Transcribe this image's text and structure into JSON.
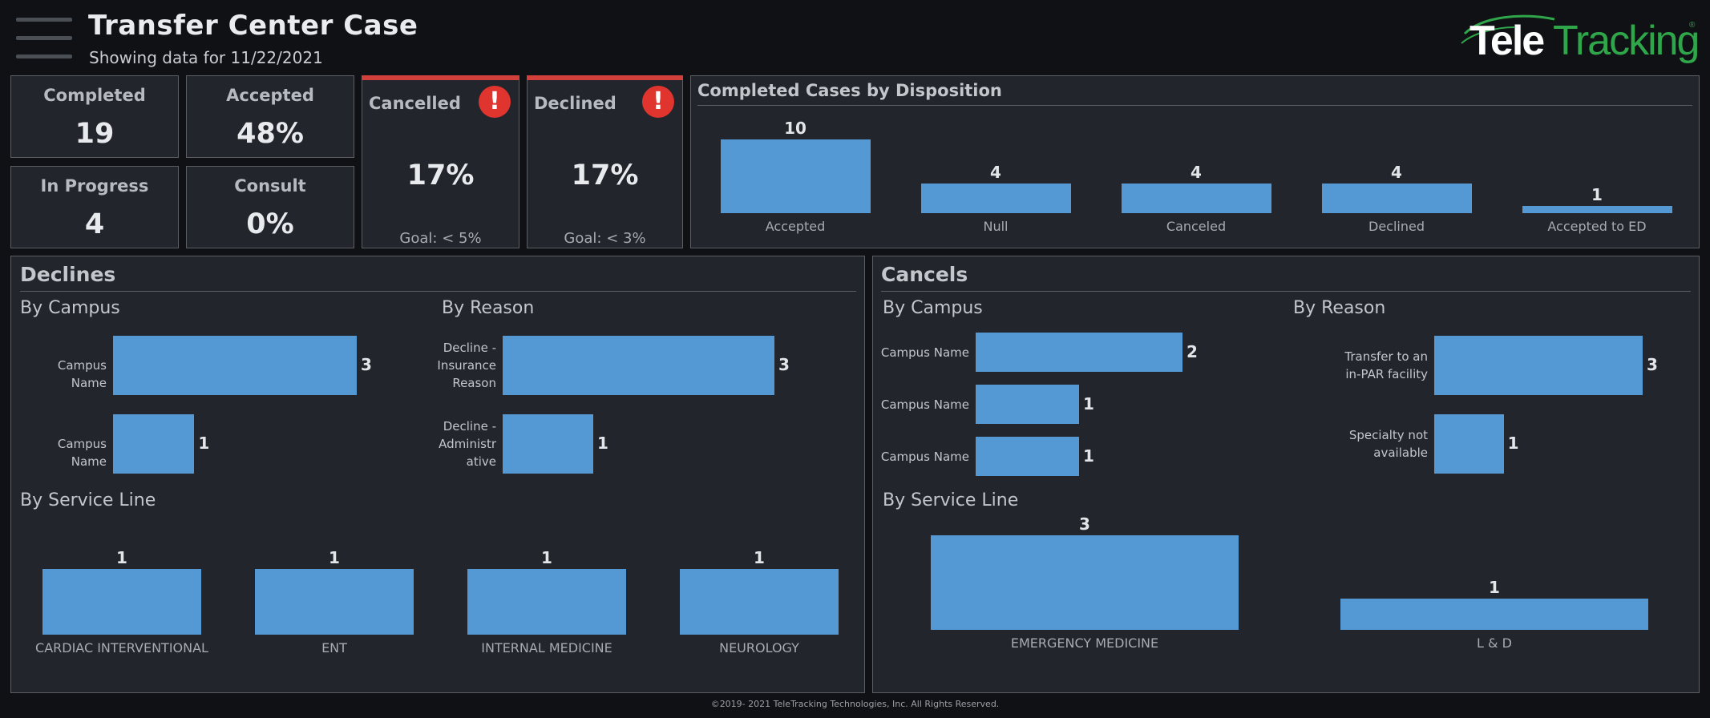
{
  "header": {
    "title": "Transfer Center Case",
    "subtitle": "Showing data for 11/22/2021",
    "logo_text_tele": "Tele",
    "logo_text_tracking": "Tracking",
    "logo_mark": "®"
  },
  "kpis": {
    "completed": {
      "label": "Completed",
      "value": "19"
    },
    "accepted": {
      "label": "Accepted",
      "value": "48%"
    },
    "in_progress": {
      "label": "In Progress",
      "value": "4"
    },
    "consult": {
      "label": "Consult",
      "value": "0%"
    },
    "cancelled": {
      "label": "Cancelled",
      "value": "17%",
      "goal": "Goal: < 5%",
      "icon": "alert-icon"
    },
    "declined": {
      "label": "Declined",
      "value": "17%",
      "goal": "Goal: < 3%",
      "icon": "alert-icon"
    }
  },
  "disposition": {
    "title": "Completed Cases by Disposition",
    "chart_data": {
      "type": "bar",
      "categories": [
        "Accepted",
        "Null",
        "Canceled",
        "Declined",
        "Accepted to ED"
      ],
      "values": [
        10,
        4,
        4,
        4,
        1
      ],
      "value_labels": [
        "10",
        "4",
        "4",
        "4",
        "1"
      ]
    }
  },
  "declines": {
    "title": "Declines",
    "by_campus": {
      "title": "By Campus",
      "chart_data": {
        "type": "bar",
        "categories": [
          "Campus Name",
          "Campus Name"
        ],
        "values": [
          3,
          1
        ],
        "value_labels": [
          "3",
          "1"
        ]
      }
    },
    "by_reason": {
      "title": "By Reason",
      "chart_data": {
        "type": "bar",
        "categories": [
          "Decline - Insurance Reason",
          "Decline - Administrative"
        ],
        "category_lines": [
          [
            "Decline -",
            "Insurance",
            "Reason"
          ],
          [
            "Decline -",
            "Administr",
            "ative"
          ]
        ],
        "values": [
          3,
          1
        ],
        "value_labels": [
          "3",
          "1"
        ]
      }
    },
    "by_service_line": {
      "title": "By Service Line",
      "chart_data": {
        "type": "bar",
        "categories": [
          "CARDIAC INTERVENTIONAL",
          "ENT",
          "INTERNAL MEDICINE",
          "NEUROLOGY"
        ],
        "values": [
          1,
          1,
          1,
          1
        ],
        "value_labels": [
          "1",
          "1",
          "1",
          "1"
        ]
      }
    }
  },
  "cancels": {
    "title": "Cancels",
    "by_campus": {
      "title": "By Campus",
      "chart_data": {
        "type": "bar",
        "categories": [
          "Campus Name",
          "Campus Name",
          "Campus Name"
        ],
        "values": [
          2,
          1,
          1
        ],
        "value_labels": [
          "2",
          "1",
          "1"
        ]
      }
    },
    "by_reason": {
      "title": "By Reason",
      "chart_data": {
        "type": "bar",
        "categories": [
          "Transfer to an in-PAR facility",
          "Specialty not available"
        ],
        "category_lines": [
          [
            "Transfer to an",
            "in-PAR facility"
          ],
          [
            "Specialty not",
            "available"
          ]
        ],
        "values": [
          3,
          1
        ],
        "value_labels": [
          "3",
          "1"
        ]
      }
    },
    "by_service_line": {
      "title": "By Service Line",
      "chart_data": {
        "type": "bar",
        "categories": [
          "EMERGENCY MEDICINE",
          "L & D"
        ],
        "values": [
          3,
          1
        ],
        "value_labels": [
          "3",
          "1"
        ]
      }
    }
  },
  "footer": {
    "text": "©2019- 2021 TeleTracking Technologies, Inc.  All Rights Reserved."
  },
  "colors": {
    "bar": "#5599d4",
    "alert": "#d2403c",
    "logo_green": "#2fa64a",
    "background": "#0f1114",
    "panel": "#22252b"
  }
}
